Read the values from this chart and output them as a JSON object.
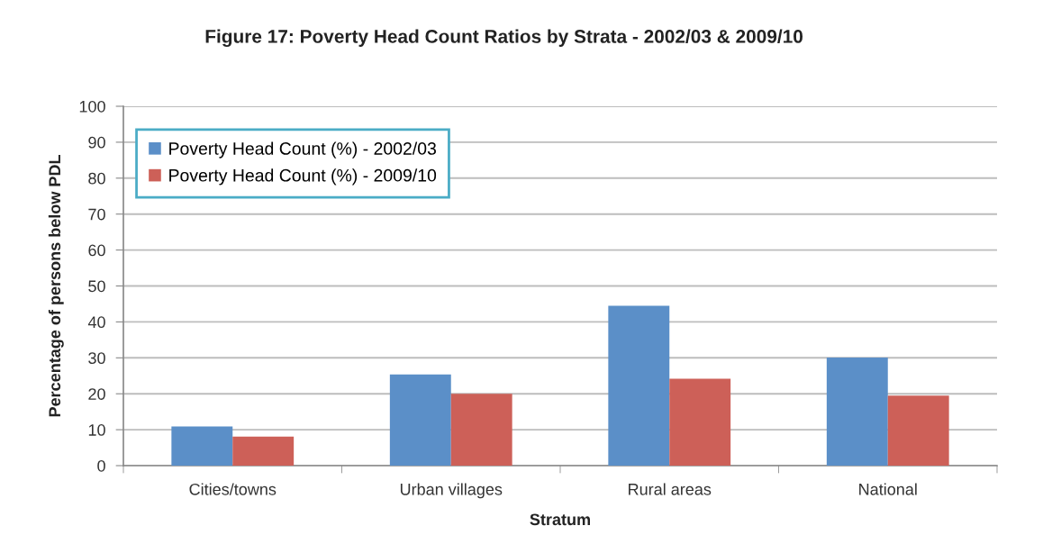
{
  "chart_data": {
    "type": "bar",
    "title": "Figure 17: Poverty Head Count Ratios by Strata - 2002/03 & 2009/10",
    "xlabel": "Stratum",
    "ylabel": "Percentage of persons below PDL",
    "categories": [
      "Cities/towns",
      "Urban villages",
      "Rural areas",
      "National"
    ],
    "series": [
      {
        "name": "Poverty Head Count (%) - 2002/03",
        "color": "#5b8fc8",
        "values": [
          10.9,
          25.4,
          44.5,
          30.1
        ]
      },
      {
        "name": "Poverty Head Count (%) - 2009/10",
        "color": "#cd6058",
        "values": [
          8.1,
          20.0,
          24.2,
          19.5
        ]
      }
    ],
    "ylim": [
      0,
      100
    ],
    "yticks": [
      0,
      10,
      20,
      30,
      40,
      50,
      60,
      70,
      80,
      90,
      100
    ],
    "grid": "y",
    "legend": "top left"
  }
}
